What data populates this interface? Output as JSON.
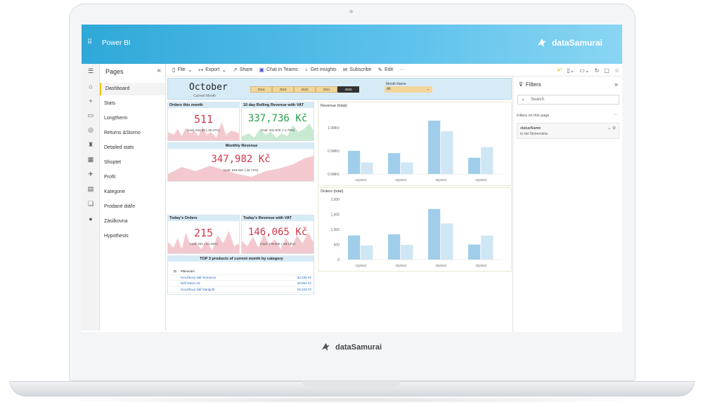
{
  "app": {
    "title": "Power BI",
    "brand": "dataSamurai",
    "waffle": "⠿"
  },
  "pages_panel": {
    "title": "Pages",
    "items": [
      "Dashboard",
      "Stats",
      "Longtherm",
      "Returns &Storno",
      "Detailed stats",
      "Shoptet",
      "Profit",
      "Kategorie",
      "Prodané diáře",
      "Zásilkovna",
      "Hypothesis"
    ]
  },
  "command_bar": {
    "file": "File",
    "export": "Export",
    "share": "Share",
    "chat": "Chat in Teams",
    "insights": "Get insights",
    "subscribe": "Subscribe",
    "edit": "Edit",
    "more": "···"
  },
  "report": {
    "month": "October",
    "month_sub": "Current Month",
    "years": [
      "2018",
      "2019",
      "2020",
      "2021",
      "2022"
    ],
    "selected_year": "2022",
    "month_name_label": "Month Name",
    "month_name_value": "All",
    "cards": {
      "orders_month": {
        "title": "Orders this month",
        "value": "511",
        "goal": "Goal: 844.20 (-39.47%)"
      },
      "rolling": {
        "title": "10 day Rolling Revenue with VAT",
        "value": "337,736 Kč",
        "goal": "Goal: 331.83K (+1.78%)"
      },
      "monthly": {
        "title": "Monthly Revenue",
        "value": "347,982 Kč",
        "goal": "Goal: 549.84K (-36.71%)"
      },
      "today_orders": {
        "title": "Today's Orders",
        "value": "215",
        "goal": "Goal: 251 (-14.34%)"
      },
      "today_revenue": {
        "title": "Today's Revenue with VAT",
        "value": "146,065 Kč",
        "goal": "Goal: 178.40K (-18.13%)"
      }
    },
    "top3": {
      "title": "TOP 3 products of current month by category",
      "group": "Plánování",
      "rows": [
        {
          "name": "Kroužkový diář Romance",
          "value": "30,335 Kč"
        },
        {
          "name": "Diář Dawn A5",
          "value": "28,654 Kč"
        },
        {
          "name": "Kroužkový diář Marigold",
          "value": "26,343 Kč"
        }
      ]
    }
  },
  "filters": {
    "title": "Filters",
    "search_placeholder": "Search",
    "on_page": "Filters on this page",
    "more": "···",
    "field": "statusName",
    "condition": "is not Stornována"
  },
  "colors": {
    "accent": "#2fa8d8",
    "bar_dark": "#9fcdea",
    "bar_light": "#cfe6f5",
    "kpi_red": "#d2374b",
    "kpi_green": "#27a149"
  },
  "chart_data": [
    {
      "type": "bar",
      "title": "Revenue (total)",
      "categories": [
        "1Q2022",
        "2Q2022",
        "3Q2022",
        "4Q2022"
      ],
      "series": [
        {
          "values": [
            0.5,
            0.45,
            1.15,
            0.35
          ]
        },
        {
          "values": [
            0.25,
            0.25,
            0.92,
            0.58
          ]
        }
      ],
      "yticks": [
        "0.0MKč",
        "0.5MKč",
        "1.0MKč"
      ],
      "ylim": [
        0,
        1.3
      ]
    },
    {
      "type": "bar",
      "title": "Orders (total)",
      "categories": [
        "1Q2022",
        "2Q2022",
        "3Q2022",
        "4Q2022"
      ],
      "series": [
        {
          "values": [
            800,
            840,
            1680,
            500
          ]
        },
        {
          "values": [
            470,
            490,
            1200,
            800
          ]
        }
      ],
      "yticks": [
        "0",
        "500",
        "1,000",
        "1,500",
        "2,000"
      ],
      "ylim": [
        0,
        2000
      ]
    }
  ]
}
